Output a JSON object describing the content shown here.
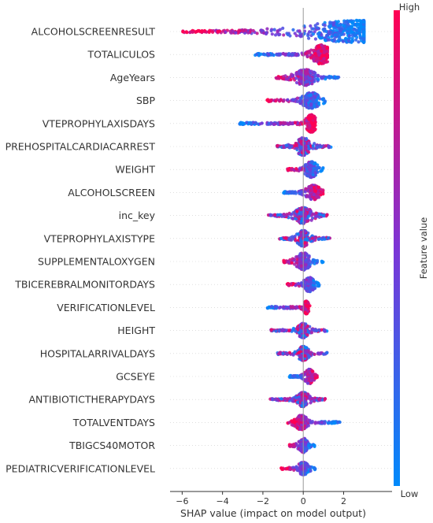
{
  "chart_data": {
    "type": "scatter",
    "subtype": "shap-beeswarm",
    "xlabel": "SHAP value (impact on model output)",
    "xlim": [
      -6.6,
      4.4
    ],
    "xticks": [
      "−6",
      "−4",
      "−2",
      "0",
      "2"
    ],
    "xtick_values": [
      -6,
      -4,
      -2,
      0,
      2
    ],
    "colorbar": {
      "label": "Feature value",
      "high_label": "High",
      "low_label": "Low",
      "low_color": "#008afb",
      "high_color": "#ff0052"
    },
    "features": [
      {
        "name": "ALCOHOLSCREENRESULT",
        "range": [
          -6.0,
          3.0
        ],
        "mode": 2.8,
        "spread": 3.2,
        "max_width": 13,
        "color_mode": "neg_high"
      },
      {
        "name": "TOTALICULOS",
        "range": [
          -2.4,
          1.2
        ],
        "mode": 0.9,
        "spread": 0.5,
        "max_width": 11,
        "color_mode": "pos_high"
      },
      {
        "name": "AgeYears",
        "range": [
          -1.4,
          1.8
        ],
        "mode": 0.1,
        "spread": 0.6,
        "max_width": 9,
        "color_mode": "neg_high"
      },
      {
        "name": "SBP",
        "range": [
          -1.8,
          1.1
        ],
        "mode": 0.4,
        "spread": 0.5,
        "max_width": 9,
        "color_mode": "neg_high"
      },
      {
        "name": "VTEPROPHYLAXISDAYS",
        "range": [
          -3.2,
          0.6
        ],
        "mode": 0.4,
        "spread": 0.3,
        "max_width": 10,
        "color_mode": "pos_high"
      },
      {
        "name": "PREHOSPITALCARDIACARREST",
        "range": [
          -1.3,
          1.4
        ],
        "mode": 0.0,
        "spread": 0.45,
        "max_width": 10,
        "color_mode": "random"
      },
      {
        "name": "WEIGHT",
        "range": [
          -0.8,
          1.0
        ],
        "mode": 0.4,
        "spread": 0.35,
        "max_width": 9,
        "color_mode": "neg_high"
      },
      {
        "name": "ALCOHOLSCREEN",
        "range": [
          -1.0,
          1.0
        ],
        "mode": 0.5,
        "spread": 0.4,
        "max_width": 8,
        "color_mode": "pos_high"
      },
      {
        "name": "inc_key",
        "range": [
          -1.8,
          1.2
        ],
        "mode": 0.0,
        "spread": 0.5,
        "max_width": 9,
        "color_mode": "random"
      },
      {
        "name": "VTEPROPHYLAXISTYPE",
        "range": [
          -1.2,
          1.4
        ],
        "mode": 0.0,
        "spread": 0.35,
        "max_width": 9,
        "color_mode": "random"
      },
      {
        "name": "SUPPLEMENTALOXYGEN",
        "range": [
          -1.0,
          1.0
        ],
        "mode": 0.0,
        "spread": 0.4,
        "max_width": 10,
        "color_mode": "neg_high"
      },
      {
        "name": "TBICEREBRALMONITORDAYS",
        "range": [
          -0.8,
          0.8
        ],
        "mode": 0.3,
        "spread": 0.3,
        "max_width": 8,
        "color_mode": "neg_high"
      },
      {
        "name": "VERIFICATIONLEVEL",
        "range": [
          -1.8,
          0.4
        ],
        "mode": 0.15,
        "spread": 0.15,
        "max_width": 7,
        "color_mode": "pos_high"
      },
      {
        "name": "HEIGHT",
        "range": [
          -1.6,
          1.2
        ],
        "mode": 0.0,
        "spread": 0.35,
        "max_width": 8,
        "color_mode": "random"
      },
      {
        "name": "HOSPITALARRIVALDAYS",
        "range": [
          -1.3,
          1.2
        ],
        "mode": 0.0,
        "spread": 0.3,
        "max_width": 8,
        "color_mode": "random"
      },
      {
        "name": "GCSEYE",
        "range": [
          -0.7,
          0.7
        ],
        "mode": 0.3,
        "spread": 0.25,
        "max_width": 8,
        "color_mode": "pos_high"
      },
      {
        "name": "ANTIBIOTICTHERAPYDAYS",
        "range": [
          -1.7,
          1.1
        ],
        "mode": 0.0,
        "spread": 0.35,
        "max_width": 8,
        "color_mode": "random"
      },
      {
        "name": "TOTALVENTDAYS",
        "range": [
          -0.8,
          1.9
        ],
        "mode": -0.1,
        "spread": 0.35,
        "max_width": 8,
        "color_mode": "neg_high"
      },
      {
        "name": "TBIGCS40MOTOR",
        "range": [
          -0.7,
          0.6
        ],
        "mode": 0.0,
        "spread": 0.25,
        "max_width": 8,
        "color_mode": "neg_high"
      },
      {
        "name": "PEDIATRICVERIFICATIONLEVEL",
        "range": [
          -1.1,
          0.6
        ],
        "mode": 0.0,
        "spread": 0.3,
        "max_width": 7,
        "color_mode": "neg_high"
      }
    ]
  }
}
